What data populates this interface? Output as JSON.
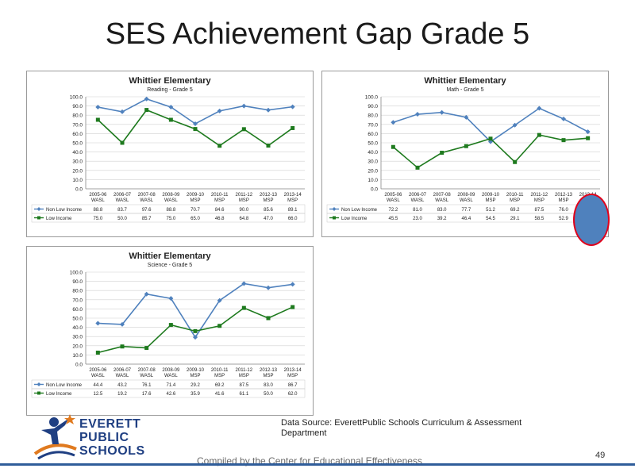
{
  "slide": {
    "title": "SES Achievement Gap Grade 5",
    "source": "Data Source: EverettPublic Schools Curriculum & Assessment Department",
    "compiled": "Compiled by the Center for Educational Effectiveness",
    "page": "49",
    "logo_lines": [
      "EVERETT",
      "PUBLIC",
      "SCHOOLS"
    ]
  },
  "colors": {
    "non_low_income": "#4f81bd",
    "low_income": "#1e7a1e"
  },
  "chart_data": [
    {
      "type": "line",
      "title": "Whittier Elementary",
      "subtitle": "Reading - Grade 5",
      "categories": [
        "2005-06\nWASL",
        "2006-07\nWASL",
        "2007-08\nWASL",
        "2008-09\nWASL",
        "2009-10\nMSP",
        "2010-11\nMSP",
        "2011-12\nMSP",
        "2012-13\nMSP",
        "2013-14\nMSP"
      ],
      "ylim": [
        0,
        100
      ],
      "yticks": [
        "0.0",
        "10.0",
        "20.0",
        "30.0",
        "40.0",
        "50.0",
        "60.0",
        "70.0",
        "80.0",
        "90.0",
        "100.0"
      ],
      "grid": true,
      "series": [
        {
          "name": "Non Low Income",
          "values": [
            88.8,
            83.7,
            97.6,
            88.8,
            70.7,
            84.6,
            90.0,
            85.6,
            89.1
          ]
        },
        {
          "name": "Low Income",
          "values": [
            75.0,
            50.0,
            85.7,
            75.0,
            65.0,
            46.8,
            64.8,
            47.0,
            66.0
          ]
        }
      ],
      "table": [
        [
          "88.8",
          "83.7",
          "97.6",
          "88.8",
          "70.7",
          "84.6",
          "90.0",
          "85.6",
          "89.1"
        ],
        [
          "75.0",
          "50.0",
          "85.7",
          "75.0",
          "65.0",
          "46.8",
          "64.8",
          "47.0",
          "66.0"
        ]
      ]
    },
    {
      "type": "line",
      "title": "Whittier Elementary",
      "subtitle": "Math - Grade 5",
      "categories": [
        "2005-06\nWASL",
        "2006-07\nWASL",
        "2007-08\nWASL",
        "2008-09\nWASL",
        "2009-10\nMSP",
        "2010-11\nMSP",
        "2011-12\nMSP",
        "2012-13\nMSP",
        "2013-14\nMSP"
      ],
      "ylim": [
        0,
        100
      ],
      "yticks": [
        "0.0",
        "10.0",
        "20.0",
        "30.0",
        "40.0",
        "50.0",
        "60.0",
        "70.0",
        "80.0",
        "90.0",
        "100.0"
      ],
      "grid": true,
      "series": [
        {
          "name": "Non Low Income",
          "values": [
            72.2,
            81.0,
            83.0,
            77.7,
            51.2,
            69.2,
            87.5,
            76.0,
            62.0
          ]
        },
        {
          "name": "Low Income",
          "values": [
            45.5,
            23.0,
            39.2,
            46.4,
            54.5,
            29.1,
            58.5,
            52.9,
            55.0
          ]
        }
      ],
      "table": [
        [
          "72.2",
          "81.0",
          "83.0",
          "77.7",
          "51.2",
          "69.2",
          "87.5",
          "76.0",
          ""
        ],
        [
          "45.5",
          "23.0",
          "39.2",
          "46.4",
          "54.5",
          "29.1",
          "58.5",
          "52.9",
          ""
        ]
      ]
    },
    {
      "type": "line",
      "title": "Whittier Elementary",
      "subtitle": "Science - Grade 5",
      "categories": [
        "2005-06\nWASL",
        "2006-07\nWASL",
        "2007-08\nWASL",
        "2008-09\nWASL",
        "2009-10\nMSP",
        "2010-11\nMSP",
        "2011-12\nMSP",
        "2012-13\nMSP",
        "2013-14\nMSP"
      ],
      "ylim": [
        0,
        100
      ],
      "yticks": [
        "0.0",
        "10.0",
        "20.0",
        "30.0",
        "40.0",
        "50.0",
        "60.0",
        "70.0",
        "80.0",
        "90.0",
        "100.0"
      ],
      "grid": true,
      "series": [
        {
          "name": "Non Low Income",
          "values": [
            44.4,
            43.2,
            76.1,
            71.4,
            29.2,
            69.2,
            87.5,
            83.0,
            86.7
          ]
        },
        {
          "name": "Low Income",
          "values": [
            12.5,
            19.2,
            17.6,
            42.6,
            35.9,
            41.6,
            61.1,
            50.0,
            62.0
          ]
        }
      ],
      "table": [
        [
          "44.4",
          "43.2",
          "76.1",
          "71.4",
          "29.2",
          "69.2",
          "87.5",
          "83.0",
          "86.7"
        ],
        [
          "12.5",
          "19.2",
          "17.6",
          "42.6",
          "35.9",
          "41.6",
          "61.1",
          "50.0",
          "62.0"
        ]
      ]
    }
  ]
}
